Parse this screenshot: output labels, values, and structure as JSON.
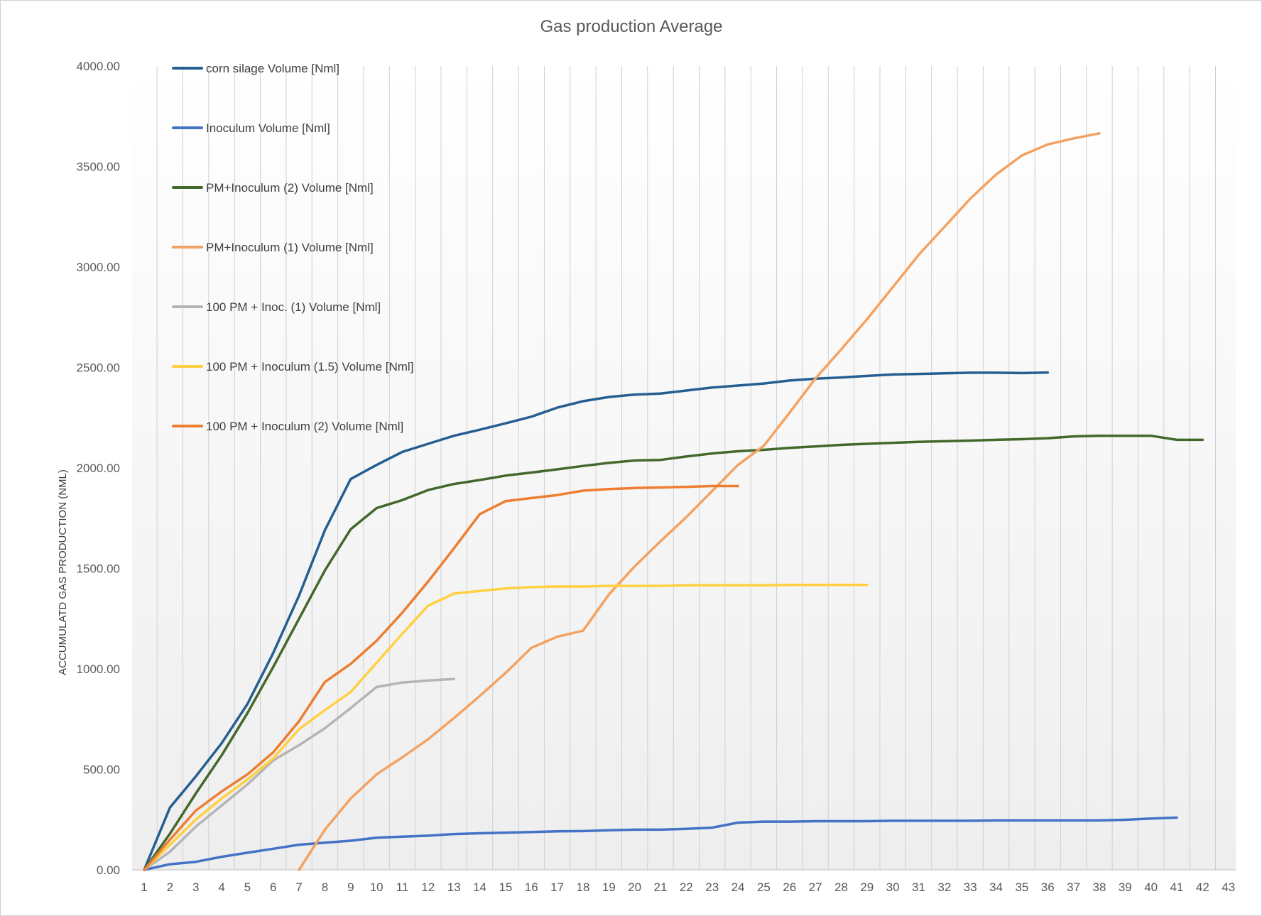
{
  "chart_data": {
    "type": "line",
    "title": "Gas production  Average",
    "xlabel": "",
    "ylabel": "ACCUMULATD GAS PRODUCTION (NML)",
    "ylim": [
      0,
      4000
    ],
    "yticks": [
      "0.00",
      "500.00",
      "1000.00",
      "1500.00",
      "2000.00",
      "2500.00",
      "3000.00",
      "3500.00",
      "4000.00"
    ],
    "categories": [
      "1",
      "2",
      "3",
      "4",
      "5",
      "6",
      "7",
      "8",
      "9",
      "10",
      "11",
      "12",
      "13",
      "14",
      "15",
      "16",
      "17",
      "18",
      "19",
      "20",
      "21",
      "22",
      "23",
      "24",
      "25",
      "26",
      "27",
      "28",
      "29",
      "30",
      "31",
      "32",
      "33",
      "34",
      "35",
      "36",
      "37",
      "38",
      "39",
      "40",
      "41",
      "42",
      "43"
    ],
    "grid": "vertical",
    "legend_position": "top-left",
    "series": [
      {
        "name": "corn silage Volume [Nml]",
        "color": "#255e91",
        "x": [
          1,
          2,
          3,
          4,
          5,
          6,
          7,
          8,
          9,
          10,
          11,
          12,
          13,
          14,
          15,
          16,
          17,
          18,
          19,
          20,
          21,
          22,
          23,
          24,
          25,
          26,
          27,
          28,
          29,
          30,
          31,
          32,
          33,
          34,
          35,
          36
        ],
        "values": [
          0,
          310,
          465,
          630,
          825,
          1080,
          1365,
          1690,
          1945,
          2015,
          2080,
          2120,
          2160,
          2190,
          2222,
          2255,
          2300,
          2332,
          2353,
          2365,
          2370,
          2385,
          2400,
          2410,
          2420,
          2435,
          2444,
          2450,
          2458,
          2465,
          2468,
          2471,
          2474,
          2474,
          2472,
          2475
        ]
      },
      {
        "name": "Inoculum Volume [Nml]",
        "color": "#4472c4",
        "x": [
          1,
          2,
          3,
          4,
          5,
          6,
          7,
          8,
          9,
          10,
          11,
          12,
          13,
          14,
          15,
          16,
          17,
          18,
          19,
          20,
          21,
          22,
          23,
          24,
          25,
          26,
          27,
          28,
          29,
          30,
          31,
          32,
          33,
          34,
          35,
          36,
          37,
          38,
          39,
          40,
          41
        ],
        "values": [
          0,
          28,
          40,
          65,
          85,
          105,
          125,
          135,
          145,
          160,
          165,
          170,
          178,
          182,
          185,
          188,
          192,
          193,
          197,
          200,
          200,
          204,
          210,
          235,
          240,
          240,
          242,
          242,
          242,
          244,
          244,
          244,
          244,
          246,
          246,
          246,
          246,
          246,
          249,
          255,
          260
        ]
      },
      {
        "name": "PM+Inoculum (2) Volume [Nml]",
        "color": "#43682b",
        "x": [
          1,
          2,
          3,
          4,
          5,
          6,
          7,
          8,
          9,
          10,
          11,
          12,
          13,
          14,
          15,
          16,
          17,
          18,
          19,
          20,
          21,
          22,
          23,
          24,
          25,
          26,
          27,
          28,
          29,
          30,
          31,
          32,
          33,
          34,
          35,
          36,
          37,
          38,
          39,
          40,
          41,
          42
        ],
        "values": [
          0,
          180,
          380,
          570,
          780,
          1010,
          1250,
          1490,
          1695,
          1800,
          1840,
          1890,
          1920,
          1940,
          1962,
          1977,
          1993,
          2010,
          2025,
          2037,
          2040,
          2057,
          2072,
          2083,
          2090,
          2100,
          2107,
          2115,
          2120,
          2125,
          2130,
          2133,
          2136,
          2140,
          2143,
          2148,
          2157,
          2160,
          2160,
          2160,
          2140,
          2140
        ]
      },
      {
        "name": "PM+Inoculum (1) Volume [Nml]",
        "color": "#f4a261",
        "x": [
          7,
          8,
          9,
          10,
          11,
          12,
          13,
          14,
          15,
          16,
          17,
          18,
          19,
          20,
          21,
          22,
          23,
          24,
          25,
          26,
          27,
          28,
          29,
          30,
          31,
          32,
          33,
          34,
          35,
          36,
          37,
          38
        ],
        "values": [
          0,
          200,
          355,
          475,
          560,
          650,
          755,
          865,
          980,
          1105,
          1160,
          1190,
          1370,
          1510,
          1635,
          1755,
          1885,
          2015,
          2110,
          2275,
          2445,
          2590,
          2740,
          2900,
          3060,
          3200,
          3340,
          3460,
          3555,
          3610,
          3640,
          3665
        ]
      },
      {
        "name": "100 PM + Inoc. (1) Volume [Nml]",
        "color": "#b4b4b4",
        "x": [
          1,
          2,
          3,
          4,
          5,
          6,
          7,
          8,
          9,
          10,
          11,
          12,
          13
        ],
        "values": [
          0,
          90,
          215,
          320,
          425,
          545,
          620,
          705,
          805,
          910,
          932,
          942,
          950
        ]
      },
      {
        "name": "100 PM + Inoculum (1.5) Volume [Nml]",
        "color": "#ffd040",
        "x": [
          1,
          2,
          3,
          4,
          5,
          6,
          7,
          8,
          9,
          10,
          11,
          12,
          13,
          14,
          15,
          16,
          17,
          18,
          19,
          20,
          21,
          22,
          23,
          24,
          25,
          26,
          27,
          28,
          29
        ],
        "values": [
          0,
          125,
          250,
          355,
          450,
          555,
          700,
          795,
          885,
          1030,
          1175,
          1315,
          1375,
          1388,
          1400,
          1407,
          1410,
          1410,
          1413,
          1413,
          1413,
          1416,
          1416,
          1416,
          1416,
          1418,
          1418,
          1418,
          1418
        ]
      },
      {
        "name": "100 PM + Inoculum (2) Volume [Nml]",
        "color": "#ed7d31",
        "x": [
          1,
          2,
          3,
          4,
          5,
          6,
          7,
          8,
          9,
          10,
          11,
          12,
          13,
          14,
          15,
          16,
          17,
          18,
          19,
          20,
          21,
          22,
          23,
          24
        ],
        "values": [
          0,
          150,
          295,
          390,
          475,
          585,
          740,
          935,
          1025,
          1140,
          1280,
          1435,
          1600,
          1770,
          1835,
          1850,
          1865,
          1887,
          1895,
          1900,
          1903,
          1906,
          1910,
          1910
        ]
      }
    ]
  }
}
